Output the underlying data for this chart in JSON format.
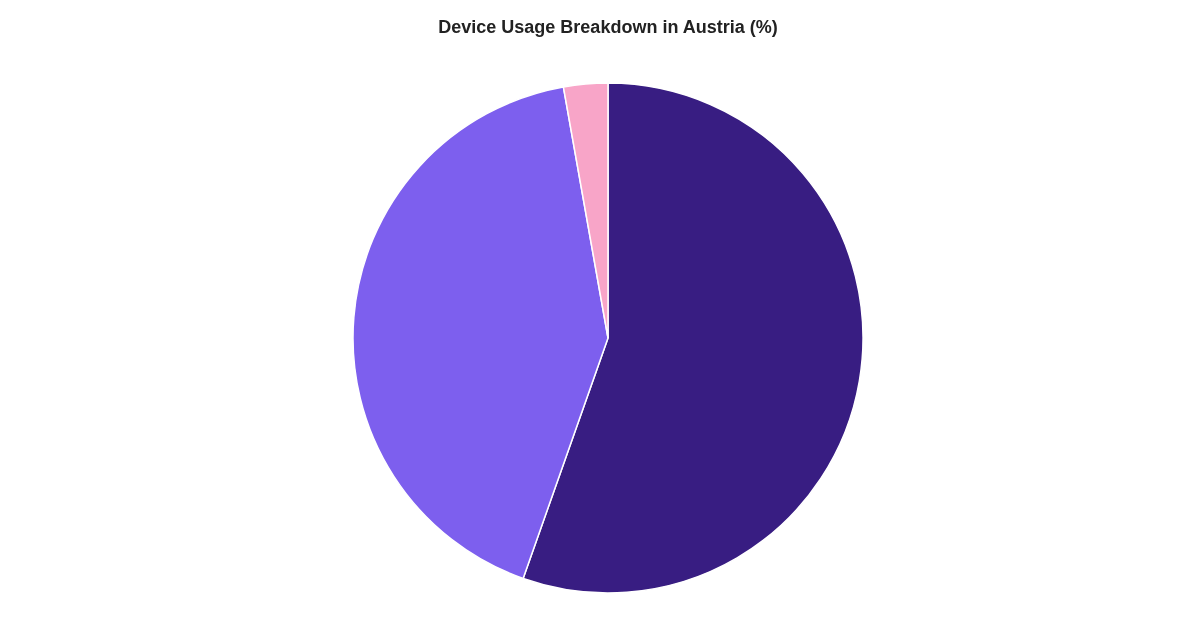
{
  "chart_data": {
    "type": "pie",
    "title": "Device Usage Breakdown in Austria (%)",
    "categories": [
      null,
      null,
      null
    ],
    "values": [
      55.4,
      41.8,
      2.8
    ],
    "colors": [
      "#381d82",
      "#7d5fee",
      "#f8a5c8"
    ]
  }
}
